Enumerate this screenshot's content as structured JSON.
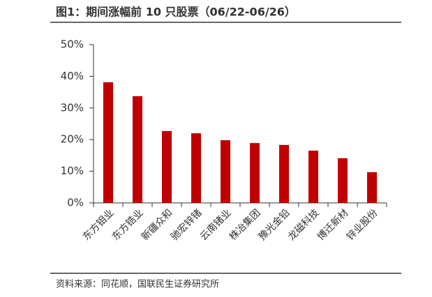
{
  "chart_data": {
    "type": "bar",
    "title": "图1：期间涨幅前 10 只股票（06/22-06/26）",
    "source": "资料来源：同花顺，国联民生证券研究所",
    "categories": [
      "东方钼业",
      "东方锆业",
      "新疆众和",
      "驰宏锌锗",
      "云南锗业",
      "株冶集团",
      "豫光金铅",
      "龙磁科技",
      "博迁新材",
      "锌业股份"
    ],
    "values": [
      38.1,
      33.7,
      22.7,
      22.0,
      19.8,
      18.9,
      18.3,
      16.5,
      14.1,
      9.7
    ],
    "color": "#c00000",
    "ylim": [
      0,
      50
    ],
    "yticks": [
      {
        "value": 0,
        "label": "0%"
      },
      {
        "value": 10,
        "label": "10%"
      },
      {
        "value": 20,
        "label": "20%"
      },
      {
        "value": 30,
        "label": "30%"
      },
      {
        "value": 40,
        "label": "40%"
      },
      {
        "value": 50,
        "label": "50%"
      }
    ]
  }
}
